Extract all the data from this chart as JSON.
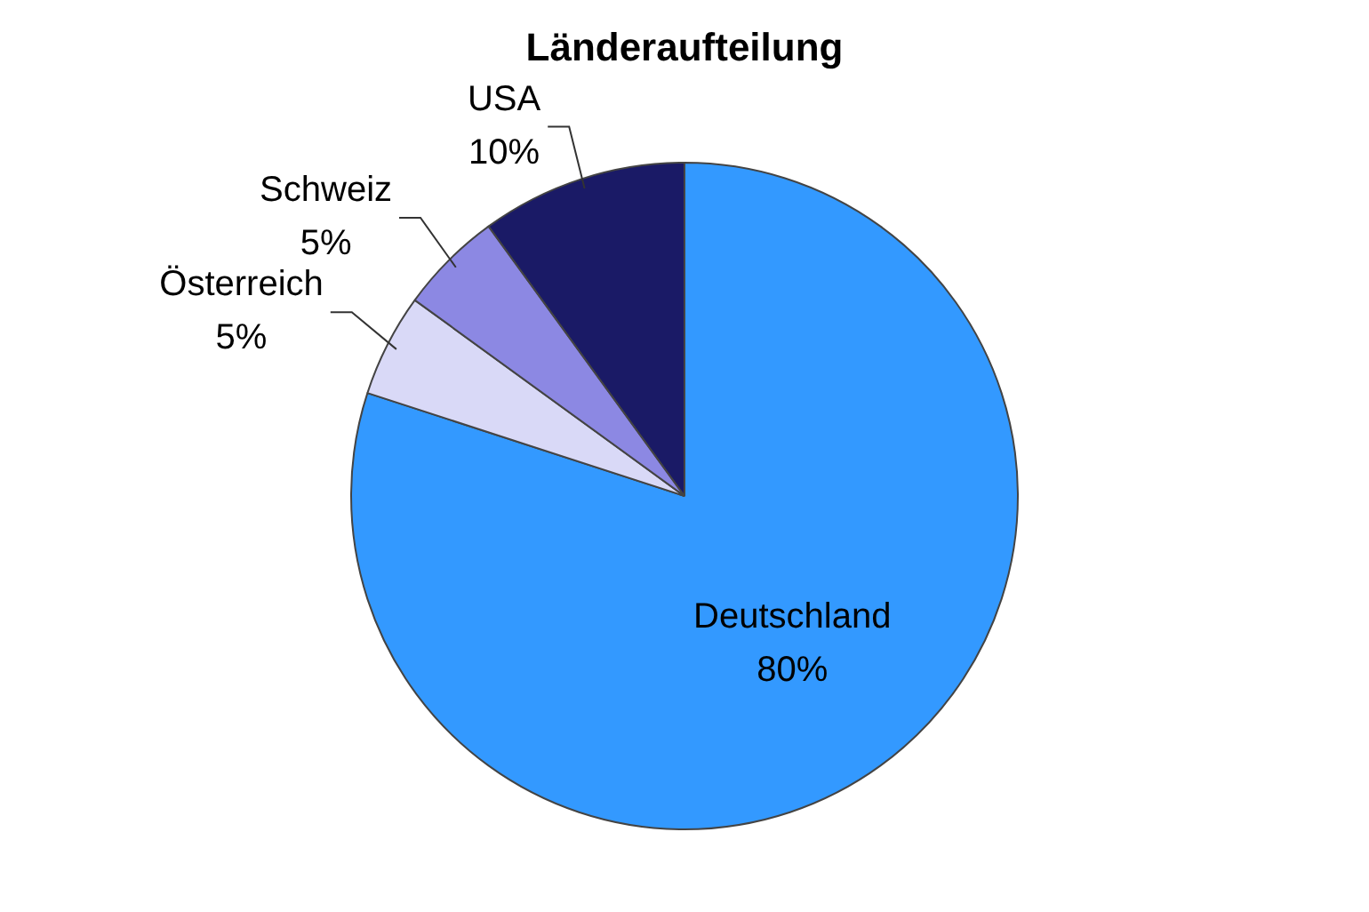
{
  "chart_data": {
    "type": "pie",
    "title": "Länderaufteilung",
    "categories": [
      "Deutschland",
      "Österreich",
      "Schweiz",
      "USA"
    ],
    "values": [
      80,
      5,
      5,
      10
    ],
    "colors": [
      "#3399ff",
      "#d9d9f7",
      "#8c88e3",
      "#1a1a66"
    ],
    "value_labels": [
      "80%",
      "5%",
      "5%",
      "10%"
    ],
    "legend": false
  }
}
